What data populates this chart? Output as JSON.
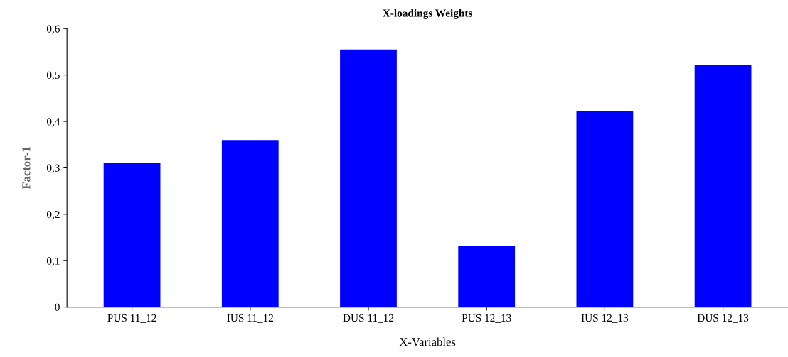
{
  "chart_data": {
    "type": "bar",
    "title": "X-loadings Weights",
    "xlabel": "X-Variables",
    "ylabel": "Factor-1",
    "categories": [
      "PUS 11_12",
      "IUS 11_12",
      "DUS 11_12",
      "PUS 12_13",
      "IUS 12_13",
      "DUS 12_13"
    ],
    "values": [
      0.311,
      0.36,
      0.555,
      0.132,
      0.423,
      0.522
    ],
    "color": "#0000ff",
    "ylim": [
      0,
      0.6
    ],
    "yticks": [
      0,
      {
        "value": 0.1,
        "label": "0,1"
      },
      {
        "value": 0.2,
        "label": "0,2"
      },
      {
        "value": 0.3,
        "label": "0,3"
      },
      {
        "value": 0.4,
        "label": "0,4"
      },
      {
        "value": 0.5,
        "label": "0,5"
      },
      {
        "value": 0.6,
        "label": "0,6"
      }
    ],
    "grid": false,
    "legend": false
  }
}
